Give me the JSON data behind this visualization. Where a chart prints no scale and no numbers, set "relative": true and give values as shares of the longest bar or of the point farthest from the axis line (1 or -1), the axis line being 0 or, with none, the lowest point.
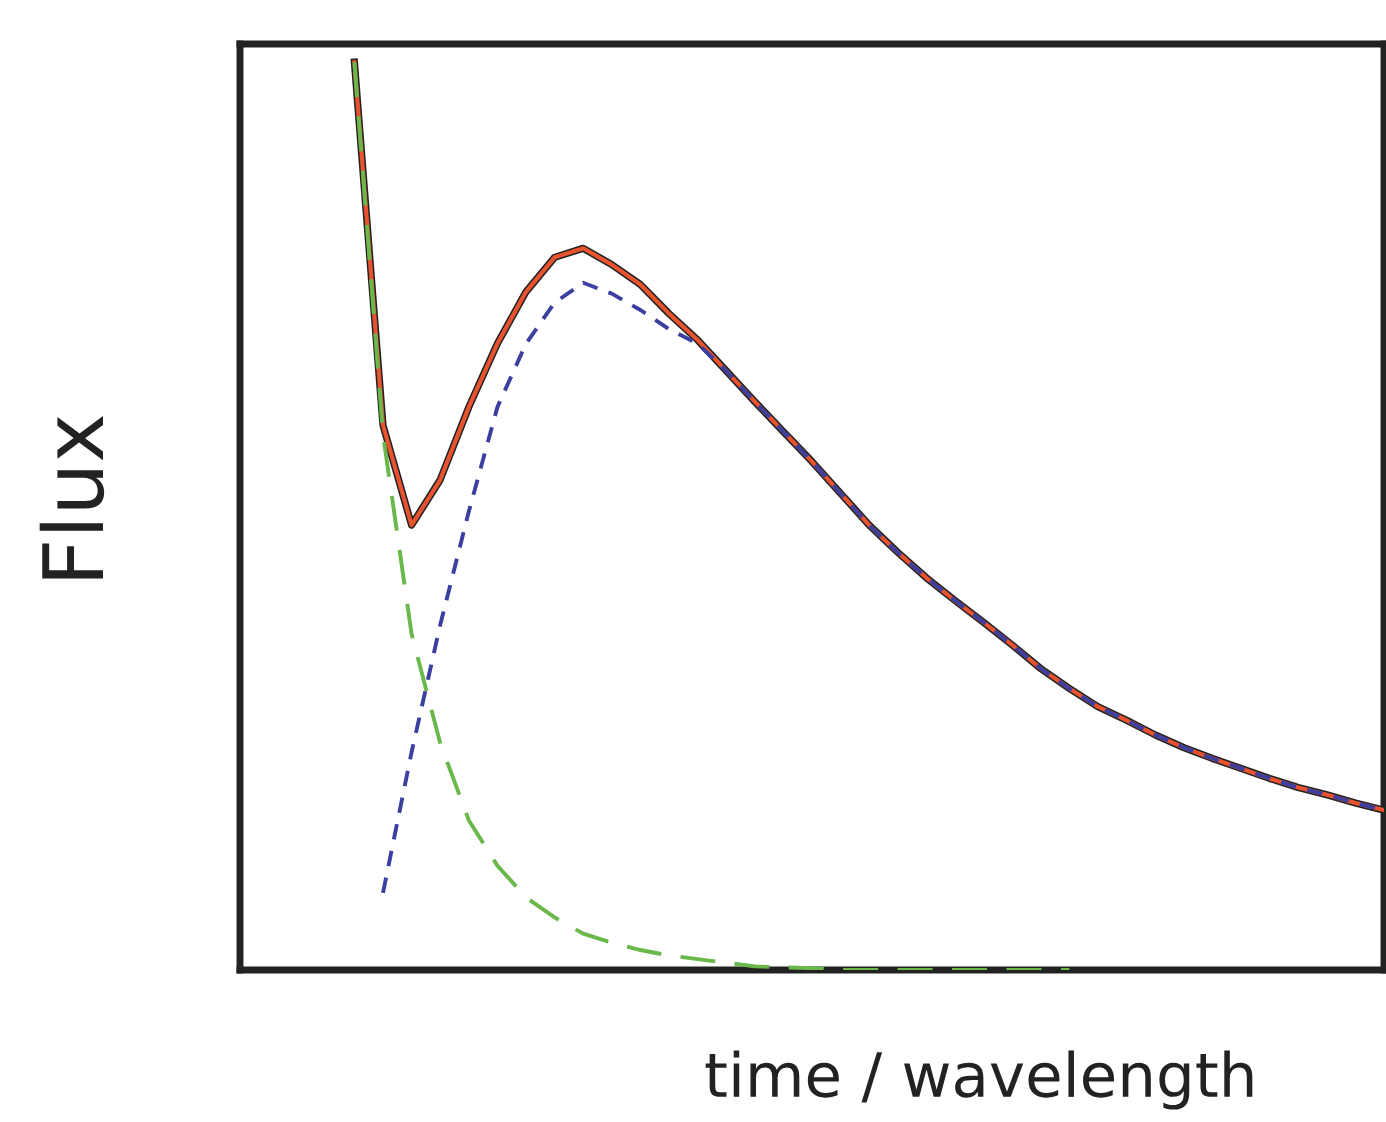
{
  "chart_data": {
    "type": "line",
    "relative": true,
    "ylabel": "Flux",
    "xlabel": "time / wavelength",
    "grid": false,
    "categories": [
      null,
      null,
      null,
      null,
      null,
      null,
      null,
      null,
      null,
      null,
      null,
      null,
      null,
      null,
      null,
      null,
      null,
      null,
      null,
      null,
      null,
      null,
      null,
      null,
      null,
      null,
      null,
      null,
      null,
      null,
      null,
      null,
      null,
      null,
      null,
      null,
      null,
      null,
      null,
      null,
      null
    ],
    "series": [
      {
        "color": "#222222",
        "values": [
          null,
          null,
          null,
          null,
          1.0,
          0.6,
          0.49,
          0.54,
          0.62,
          0.69,
          0.747,
          0.785,
          0.795,
          0.777,
          0.755,
          0.723,
          0.694,
          0.66,
          0.626,
          0.593,
          0.56,
          0.525,
          0.49,
          0.46,
          0.432,
          0.407,
          0.383,
          0.358,
          0.332,
          0.31,
          0.29,
          0.275,
          0.259,
          0.245,
          0.233,
          0.222,
          0.211,
          0.201,
          0.193,
          0.184,
          0.176
        ]
      },
      {
        "color": "#e8532f",
        "line_style": "solid",
        "values": [
          null,
          null,
          null,
          null,
          1.0,
          0.6,
          0.49,
          0.54,
          0.62,
          0.69,
          0.747,
          0.785,
          0.795,
          0.777,
          0.755,
          0.723,
          0.694,
          0.66,
          0.626,
          0.593,
          0.56,
          0.525,
          0.49,
          0.46,
          0.432,
          0.407,
          0.383,
          0.358,
          0.332,
          0.31,
          0.29,
          0.275,
          0.259,
          0.245,
          0.233,
          0.222,
          0.211,
          0.201,
          0.193,
          0.184,
          0.176
        ]
      },
      {
        "color": "#3a3fa0",
        "line_style": "dashed",
        "values": [
          null,
          null,
          null,
          null,
          null,
          0.085,
          0.24,
          0.38,
          0.505,
          0.62,
          0.69,
          0.735,
          0.757,
          0.745,
          0.727,
          0.706,
          0.69,
          0.66,
          0.626,
          0.593,
          0.56,
          0.525,
          0.49,
          0.46,
          0.432,
          0.407,
          0.383,
          0.358,
          0.332,
          0.31,
          0.29,
          0.275,
          0.259,
          0.245,
          0.233,
          0.222,
          0.211,
          0.201,
          0.193,
          0.184,
          0.176
        ]
      },
      {
        "color": "#6ab84a",
        "line_style": "longdash",
        "values": [
          null,
          null,
          null,
          null,
          1.0,
          0.59,
          0.37,
          0.25,
          0.165,
          0.115,
          0.08,
          0.058,
          0.04,
          0.03,
          0.022,
          0.016,
          0.012,
          0.008,
          0.004,
          0.003,
          0.002,
          0,
          0,
          0,
          0,
          0,
          0,
          0,
          0,
          0,
          null,
          null,
          null,
          null,
          null,
          null,
          null,
          null,
          null,
          null,
          null
        ]
      }
    ]
  }
}
